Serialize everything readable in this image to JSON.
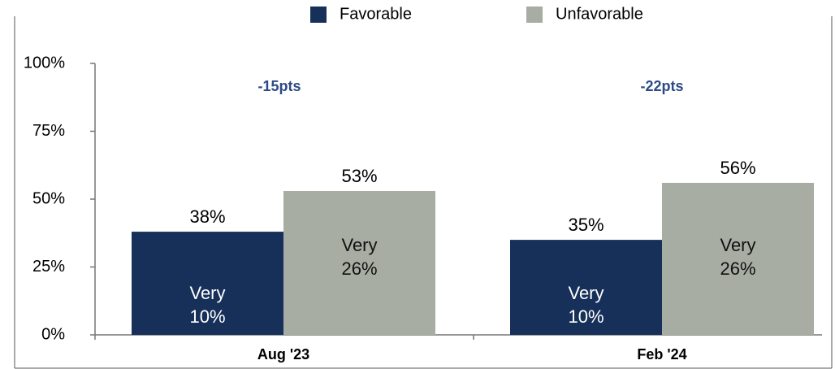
{
  "chart_data": {
    "type": "bar",
    "categories": [
      "Aug '23",
      "Feb '24"
    ],
    "series": [
      {
        "name": "Favorable",
        "color": "#17305a",
        "values": [
          38,
          35
        ],
        "value_labels": [
          "38%",
          "35%"
        ],
        "sub_label": "Very",
        "sub_value_labels": [
          "10%",
          "10%"
        ]
      },
      {
        "name": "Unfavorable",
        "color": "#a7ada2",
        "values": [
          53,
          56
        ],
        "value_labels": [
          "53%",
          "56%"
        ],
        "sub_label": "Very",
        "sub_value_labels": [
          "26%",
          "26%"
        ]
      }
    ],
    "differences": [
      "-15pts",
      "-22pts"
    ],
    "ylim": [
      0,
      100
    ],
    "yticks": [
      {
        "value": 0,
        "label": "0%"
      },
      {
        "value": 25,
        "label": "25%"
      },
      {
        "value": 50,
        "label": "50%"
      },
      {
        "value": 75,
        "label": "75%"
      },
      {
        "value": 100,
        "label": "100%"
      }
    ],
    "legend": "top"
  }
}
